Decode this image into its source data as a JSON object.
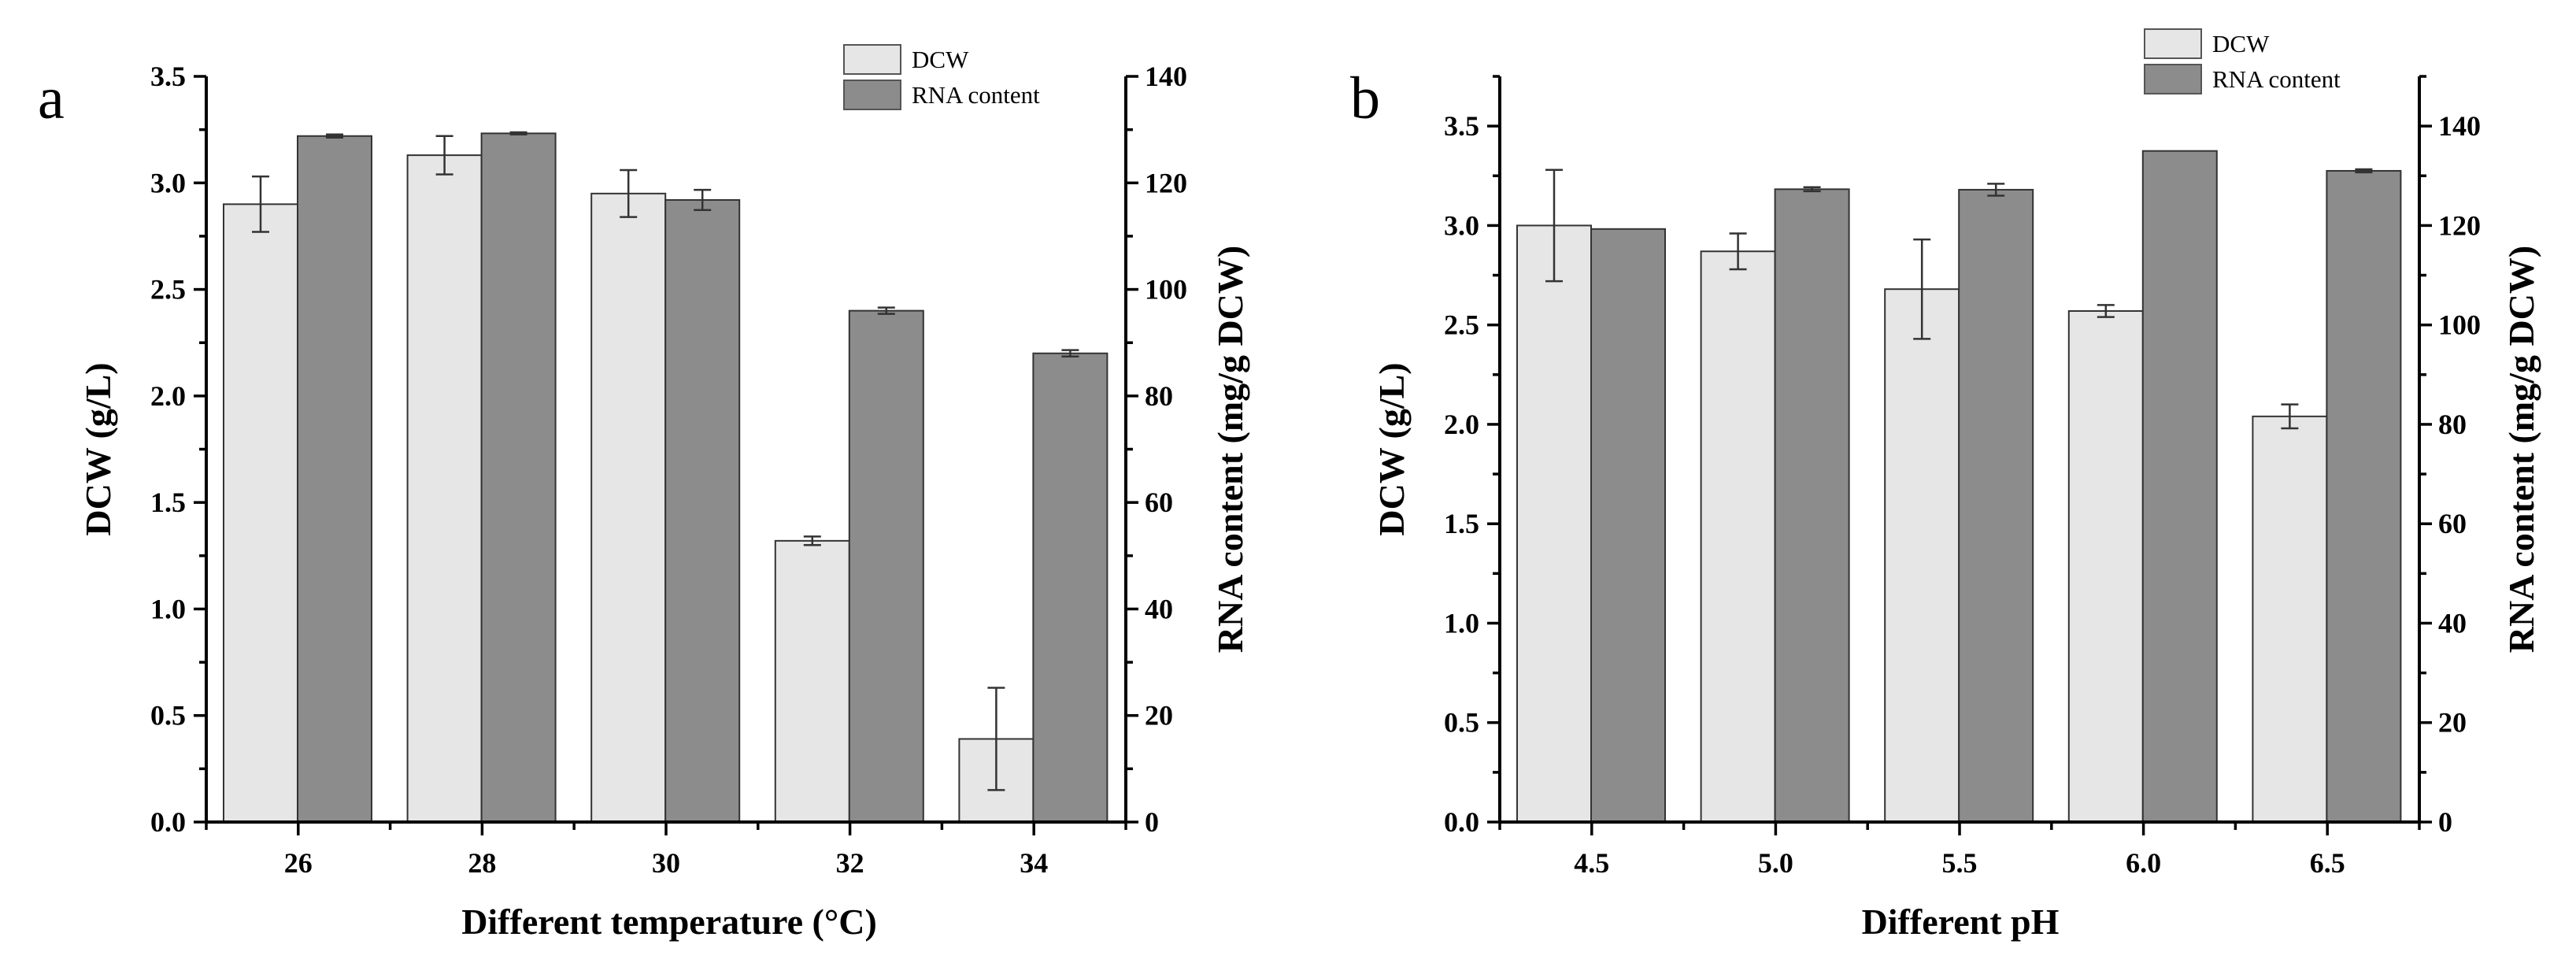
{
  "chart_data": [
    {
      "panel_label": "a",
      "type": "bar",
      "xlabel": "Different temperature (°C)",
      "ylabel_left": "DCW (g/L)",
      "ylabel_right": "RNA content (mg/g DCW)",
      "left_ylim": [
        0,
        3.5
      ],
      "left_ticks": [
        "0.0",
        "0.5",
        "1.0",
        "1.5",
        "2.0",
        "2.5",
        "3.0",
        "3.5"
      ],
      "right_ylim": [
        0,
        140
      ],
      "right_ticks": [
        "0",
        "20",
        "40",
        "60",
        "80",
        "100",
        "120",
        "140"
      ],
      "categories": [
        "26",
        "28",
        "30",
        "32",
        "34"
      ],
      "legend": [
        "DCW",
        "RNA content"
      ],
      "series": [
        {
          "name": "DCW",
          "axis": "left",
          "color": "#e6e6e6",
          "values": [
            2.9,
            3.13,
            2.95,
            1.32,
            0.39
          ],
          "errors": [
            0.13,
            0.09,
            0.11,
            0.02,
            0.24
          ]
        },
        {
          "name": "RNA content",
          "axis": "right",
          "color": "#8c8c8c",
          "values": [
            128.8,
            129.3,
            116.8,
            96.0,
            88.0
          ],
          "errors": [
            0.3,
            0.2,
            1.9,
            0.6,
            0.6
          ]
        }
      ]
    },
    {
      "panel_label": "b",
      "type": "bar",
      "xlabel": "Different pH",
      "ylabel_left": "DCW (g/L)",
      "ylabel_right": "RNA content (mg/g DCW)",
      "left_ylim": [
        0,
        3.75
      ],
      "left_ticks": [
        "0.0",
        "0.5",
        "1.0",
        "1.5",
        "2.0",
        "2.5",
        "3.0",
        "3.5"
      ],
      "right_ylim": [
        0,
        150
      ],
      "right_ticks": [
        "0",
        "20",
        "40",
        "60",
        "80",
        "100",
        "120",
        "140"
      ],
      "categories": [
        "4.5",
        "5.0",
        "5.5",
        "6.0",
        "6.5"
      ],
      "legend": [
        "DCW",
        "RNA content"
      ],
      "series": [
        {
          "name": "DCW",
          "axis": "left",
          "color": "#e6e6e6",
          "values": [
            3.0,
            2.87,
            2.68,
            2.57,
            2.04
          ],
          "errors": [
            0.28,
            0.09,
            0.25,
            0.03,
            0.06
          ]
        },
        {
          "name": "RNA content",
          "axis": "right",
          "color": "#8c8c8c",
          "values": [
            119.3,
            127.3,
            127.2,
            135.0,
            131.0
          ],
          "errors": [
            0.0,
            0.4,
            1.2,
            0.0,
            0.3
          ]
        }
      ]
    }
  ]
}
